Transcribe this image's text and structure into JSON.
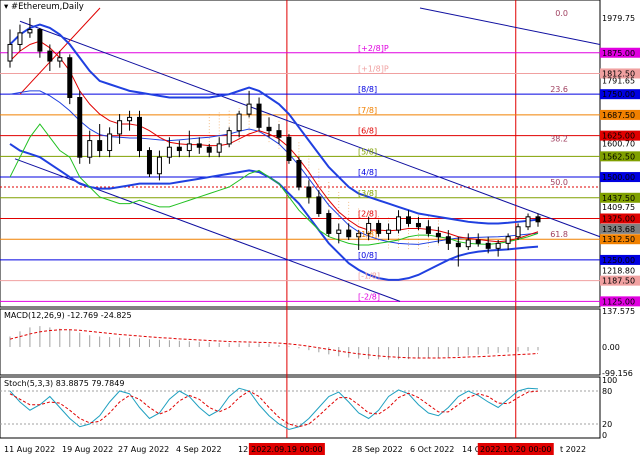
{
  "window": {
    "title": "#Ethereum,Daily"
  },
  "colors": {
    "bg": "#ffffff",
    "murrey_magenta": "#e000e0",
    "murrey_red": "#e00000",
    "murrey_blue": "#0000e0",
    "murrey_orange": "#f08000",
    "murrey_olive": "#80a000",
    "murrey_pink": "#f0a0a0",
    "bollinger": "#2040e0",
    "ma_red": "#e00000",
    "ma_green": "#20c020",
    "trend_line": "#1010a0",
    "stoch_main": "#20a0c0",
    "stoch_signal": "#e00000",
    "macd_hist": "#a0a0a0",
    "macd_signal": "#e00000"
  },
  "price_axis": {
    "labels": [
      {
        "text": "1979.75",
        "price": 1979.75
      },
      {
        "text": "1875.00",
        "price": 1875.0,
        "color": "#e000e0"
      },
      {
        "text": "1812.50",
        "price": 1812.5,
        "color": "#f0a0a0"
      },
      {
        "text": "1791.65",
        "price": 1791.65
      },
      {
        "text": "1750.00",
        "price": 1750.0,
        "color": "#0000e0"
      },
      {
        "text": "1687.50",
        "price": 1687.5,
        "color": "#f08000"
      },
      {
        "text": "1625.00",
        "price": 1625.0,
        "color": "#e00000"
      },
      {
        "text": "1600.70",
        "price": 1600.7
      },
      {
        "text": "1562.50",
        "price": 1562.5,
        "color": "#80a000"
      },
      {
        "text": "1500.00",
        "price": 1500.0,
        "color": "#0000e0"
      },
      {
        "text": "1437.50",
        "price": 1437.5,
        "color": "#80a000"
      },
      {
        "text": "1409.75",
        "price": 1409.75
      },
      {
        "text": "1375.00",
        "price": 1375.0,
        "color": "#e00000"
      },
      {
        "text": "1343.68",
        "price": 1343.68,
        "color": "#808080"
      },
      {
        "text": "1312.50",
        "price": 1312.5,
        "color": "#f08000"
      },
      {
        "text": "1250.00",
        "price": 1250.0,
        "color": "#0000e0"
      },
      {
        "text": "1218.80",
        "price": 1218.8
      },
      {
        "text": "1187.50",
        "price": 1187.5,
        "color": "#f0a0a0"
      },
      {
        "text": "1125.00",
        "price": 1125.0,
        "color": "#e000e0"
      }
    ]
  },
  "murrey_labels": [
    {
      "text": "[+2/8]P",
      "price": 1875.0,
      "color": "#e000e0"
    },
    {
      "text": "[+1/8]P",
      "price": 1812.5,
      "color": "#f0a0a0"
    },
    {
      "text": "[8/8]",
      "price": 1750.0,
      "color": "#0000e0"
    },
    {
      "text": "[7/8]",
      "price": 1687.5,
      "color": "#f08000"
    },
    {
      "text": "[6/8]",
      "price": 1625.0,
      "color": "#e00000"
    },
    {
      "text": "[5/8]",
      "price": 1562.5,
      "color": "#80a000"
    },
    {
      "text": "[4/8]",
      "price": 1500.0,
      "color": "#0000e0"
    },
    {
      "text": "[3/8]",
      "price": 1437.5,
      "color": "#80a000"
    },
    {
      "text": "[2/8]",
      "price": 1375.0,
      "color": "#e00000"
    },
    {
      "text": "[1/8]",
      "price": 1312.5,
      "color": "#f08000"
    },
    {
      "text": "[0/8]",
      "price": 1250.0,
      "color": "#0000e0"
    },
    {
      "text": "[-1/8]",
      "price": 1187.5,
      "color": "#f0a0a0"
    },
    {
      "text": "[-2/8]",
      "price": 1125.0,
      "color": "#e000e0"
    }
  ],
  "fib_labels": [
    {
      "text": "0.0",
      "price": 1979.75
    },
    {
      "text": "23.6",
      "price": 1750.0
    },
    {
      "text": "38.2",
      "price": 1600.7
    },
    {
      "text": "50.0",
      "price": 1470.0
    },
    {
      "text": "61.8",
      "price": 1312.5
    }
  ],
  "date_axis": [
    "11 Aug 2022",
    "19 Aug 2022",
    "27 Aug 2022",
    "4 Sep 2022",
    "12 Sep",
    "28 Sep 2022",
    "6 Oct 2022",
    "14 Oct",
    "t 2022"
  ],
  "date_markers": [
    "2022.09.19 00:00",
    "2022.10.20 00:00"
  ],
  "macd": {
    "title": "MACD(12,26,9) -12.769 -24.825",
    "axis": [
      "137.575",
      "0.00",
      "-99.156"
    ]
  },
  "stoch": {
    "title": "Stoch(5,3,3) 83.8875 79.7849",
    "axis": [
      "100",
      "80",
      "20",
      "0"
    ]
  },
  "candles": [
    [
      1850,
      1945,
      1830,
      1900
    ],
    [
      1900,
      1960,
      1880,
      1935
    ],
    [
      1935,
      1980,
      1920,
      1945
    ],
    [
      1945,
      1950,
      1860,
      1880
    ],
    [
      1880,
      1900,
      1820,
      1850
    ],
    [
      1850,
      1880,
      1830,
      1860
    ],
    [
      1860,
      1870,
      1720,
      1740
    ],
    [
      1740,
      1760,
      1540,
      1560
    ],
    [
      1560,
      1640,
      1540,
      1610
    ],
    [
      1610,
      1660,
      1560,
      1580
    ],
    [
      1580,
      1650,
      1560,
      1630
    ],
    [
      1630,
      1690,
      1600,
      1670
    ],
    [
      1670,
      1700,
      1640,
      1680
    ],
    [
      1680,
      1700,
      1560,
      1580
    ],
    [
      1580,
      1590,
      1500,
      1510
    ],
    [
      1510,
      1580,
      1490,
      1560
    ],
    [
      1560,
      1620,
      1540,
      1590
    ],
    [
      1590,
      1610,
      1560,
      1580
    ],
    [
      1580,
      1640,
      1560,
      1600
    ],
    [
      1600,
      1620,
      1570,
      1590
    ],
    [
      1590,
      1600,
      1560,
      1575
    ],
    [
      1575,
      1620,
      1560,
      1600
    ],
    [
      1600,
      1650,
      1590,
      1640
    ],
    [
      1640,
      1700,
      1620,
      1690
    ],
    [
      1690,
      1760,
      1680,
      1720
    ],
    [
      1720,
      1740,
      1640,
      1650
    ],
    [
      1650,
      1680,
      1620,
      1640
    ],
    [
      1640,
      1660,
      1600,
      1620
    ],
    [
      1620,
      1630,
      1540,
      1550
    ],
    [
      1550,
      1560,
      1460,
      1470
    ],
    [
      1470,
      1490,
      1420,
      1440
    ],
    [
      1440,
      1460,
      1380,
      1390
    ],
    [
      1390,
      1400,
      1320,
      1330
    ],
    [
      1330,
      1360,
      1300,
      1340
    ],
    [
      1340,
      1360,
      1310,
      1320
    ],
    [
      1320,
      1340,
      1280,
      1330
    ],
    [
      1330,
      1380,
      1310,
      1360
    ],
    [
      1360,
      1370,
      1320,
      1330
    ],
    [
      1330,
      1360,
      1310,
      1340
    ],
    [
      1340,
      1400,
      1330,
      1380
    ],
    [
      1380,
      1400,
      1350,
      1360
    ],
    [
      1360,
      1380,
      1340,
      1350
    ],
    [
      1350,
      1370,
      1320,
      1330
    ],
    [
      1330,
      1350,
      1300,
      1320
    ],
    [
      1320,
      1340,
      1280,
      1300
    ],
    [
      1300,
      1320,
      1230,
      1290
    ],
    [
      1290,
      1330,
      1280,
      1310
    ],
    [
      1310,
      1330,
      1290,
      1300
    ],
    [
      1300,
      1320,
      1270,
      1285
    ],
    [
      1285,
      1310,
      1260,
      1300
    ],
    [
      1300,
      1330,
      1280,
      1320
    ],
    [
      1320,
      1360,
      1310,
      1350
    ],
    [
      1350,
      1390,
      1340,
      1380
    ],
    [
      1380,
      1390,
      1350,
      1365
    ]
  ],
  "indicators": {
    "bb_upper": [
      1900,
      1930,
      1950,
      1960,
      1950,
      1930,
      1900,
      1860,
      1820,
      1790,
      1780,
      1770,
      1760,
      1755,
      1750,
      1745,
      1740,
      1740,
      1740,
      1740,
      1740,
      1745,
      1750,
      1760,
      1770,
      1760,
      1740,
      1720,
      1690,
      1650,
      1610,
      1570,
      1530,
      1500,
      1470,
      1450,
      1440,
      1430,
      1420,
      1410,
      1400,
      1390,
      1385,
      1380,
      1375,
      1370,
      1365,
      1362,
      1360,
      1360,
      1362,
      1365,
      1368,
      1372
    ],
    "bb_lower": [
      1600,
      1580,
      1570,
      1560,
      1540,
      1520,
      1500,
      1480,
      1470,
      1465,
      1465,
      1470,
      1475,
      1480,
      1480,
      1480,
      1480,
      1485,
      1490,
      1495,
      1500,
      1505,
      1510,
      1515,
      1520,
      1515,
      1500,
      1480,
      1450,
      1420,
      1380,
      1340,
      1300,
      1270,
      1240,
      1220,
      1205,
      1195,
      1190,
      1190,
      1195,
      1205,
      1220,
      1235,
      1250,
      1262,
      1270,
      1275,
      1278,
      1280,
      1282,
      1285,
      1288,
      1290
    ],
    "bb_mid": [
      1750,
      1755,
      1760,
      1760,
      1745,
      1725,
      1700,
      1670,
      1645,
      1628,
      1622,
      1620,
      1618,
      1618,
      1615,
      1612,
      1610,
      1612,
      1615,
      1618,
      1620,
      1625,
      1630,
      1638,
      1645,
      1638,
      1620,
      1600,
      1570,
      1535,
      1495,
      1455,
      1415,
      1385,
      1355,
      1335,
      1322,
      1312,
      1305,
      1300,
      1298,
      1297,
      1302,
      1307,
      1312,
      1316,
      1317,
      1318,
      1319,
      1320,
      1322,
      1325,
      1328,
      1331
    ],
    "ma_red": [
      1850,
      1880,
      1900,
      1910,
      1890,
      1860,
      1820,
      1760,
      1720,
      1690,
      1670,
      1660,
      1660,
      1655,
      1640,
      1620,
      1605,
      1600,
      1598,
      1598,
      1595,
      1595,
      1600,
      1615,
      1630,
      1640,
      1630,
      1615,
      1590,
      1555,
      1515,
      1470,
      1430,
      1395,
      1370,
      1350,
      1340,
      1340,
      1338,
      1340,
      1345,
      1345,
      1342,
      1338,
      1330,
      1320,
      1315,
      1312,
      1308,
      1305,
      1308,
      1315,
      1325,
      1335
    ],
    "ma_green": [
      1500,
      1560,
      1620,
      1660,
      1620,
      1580,
      1560,
      1500,
      1470,
      1440,
      1430,
      1420,
      1420,
      1430,
      1420,
      1410,
      1410,
      1420,
      1430,
      1440,
      1450,
      1460,
      1470,
      1490,
      1510,
      1520,
      1500,
      1480,
      1440,
      1400,
      1370,
      1340,
      1320,
      1310,
      1300,
      1295,
      1295,
      1300,
      1305,
      1310,
      1320,
      1325,
      1325,
      1320,
      1315,
      1305,
      1300,
      1298,
      1297,
      1300,
      1305,
      1312,
      1320,
      1330
    ],
    "stoch_k": [
      80,
      60,
      45,
      55,
      70,
      50,
      30,
      15,
      20,
      35,
      60,
      80,
      75,
      50,
      30,
      40,
      65,
      80,
      70,
      50,
      35,
      45,
      70,
      85,
      80,
      55,
      35,
      20,
      10,
      15,
      30,
      50,
      70,
      78,
      60,
      40,
      30,
      45,
      70,
      82,
      75,
      55,
      40,
      35,
      50,
      70,
      80,
      72,
      60,
      50,
      65,
      80,
      85,
      83.9
    ],
    "stoch_d": [
      75,
      65,
      55,
      55,
      60,
      58,
      45,
      30,
      22,
      25,
      40,
      60,
      72,
      65,
      50,
      38,
      45,
      62,
      72,
      65,
      50,
      42,
      50,
      68,
      80,
      70,
      50,
      32,
      20,
      15,
      20,
      35,
      52,
      68,
      68,
      55,
      40,
      38,
      50,
      68,
      76,
      68,
      55,
      42,
      42,
      55,
      68,
      75,
      70,
      58,
      57,
      68,
      78,
      79.8
    ],
    "macd_hist": [
      40,
      60,
      75,
      80,
      75,
      70,
      65,
      55,
      45,
      40,
      38,
      36,
      35,
      33,
      30,
      28,
      26,
      24,
      22,
      20,
      18,
      16,
      15,
      14,
      14,
      14,
      12,
      8,
      2,
      -5,
      -12,
      -20,
      -28,
      -35,
      -40,
      -44,
      -46,
      -47,
      -48,
      -47,
      -46,
      -44,
      -42,
      -40,
      -38,
      -35,
      -32,
      -29,
      -26,
      -22,
      -20,
      -17,
      -15,
      -12.8
    ],
    "macd_sig": [
      30,
      40,
      50,
      58,
      63,
      66,
      66,
      64,
      60,
      56,
      52,
      48,
      45,
      42,
      39,
      36,
      34,
      31,
      29,
      27,
      25,
      23,
      21,
      20,
      19,
      18,
      17,
      15,
      12,
      8,
      3,
      -3,
      -9,
      -15,
      -21,
      -26,
      -30,
      -34,
      -37,
      -39,
      -41,
      -42,
      -42,
      -42,
      -41,
      -40,
      -38,
      -37,
      -35,
      -33,
      -31,
      -29,
      -27,
      -24.8
    ]
  }
}
